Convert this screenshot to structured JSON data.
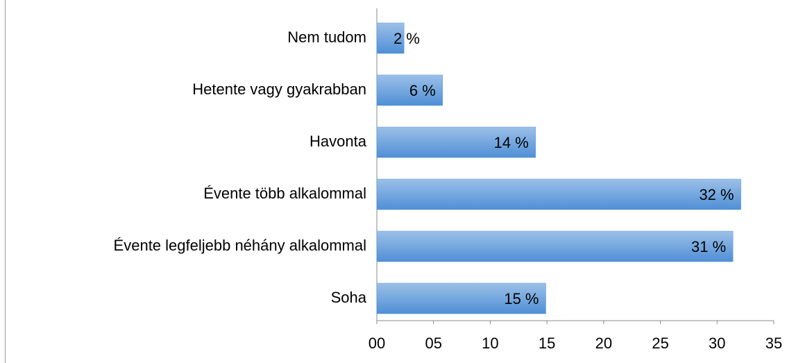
{
  "chart_data": {
    "type": "bar",
    "orientation": "horizontal",
    "categories": [
      "Nem tudom",
      "Hetente vagy gyakrabban",
      "Havonta",
      "Évente több alkalommal",
      "Évente legfeljebb néhány alkalommal",
      "Soha"
    ],
    "values": [
      2.4,
      5.8,
      14,
      32.1,
      31.4,
      14.9
    ],
    "value_labels": [
      "2 %",
      "6 %",
      "14 %",
      "32 %",
      "31 %",
      "15 %"
    ],
    "color": "#5b9bd5",
    "xlim": [
      0,
      35
    ],
    "xticks": [
      {
        "value": 0,
        "label": "00"
      },
      {
        "value": 5,
        "label": "05"
      },
      10,
      15,
      20,
      25,
      30,
      35
    ]
  }
}
